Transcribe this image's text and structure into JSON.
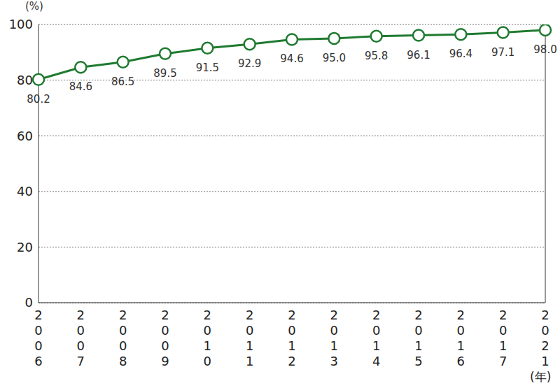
{
  "chart_data": {
    "type": "line",
    "y_label": "(%)",
    "x_label": "(年)",
    "categories": [
      "2006",
      "2007",
      "2008",
      "2009",
      "2010",
      "2011",
      "2012",
      "2013",
      "2014",
      "2015",
      "2016",
      "2017",
      "2021"
    ],
    "values": [
      80.2,
      84.6,
      86.5,
      89.5,
      91.5,
      92.9,
      94.6,
      95.0,
      95.8,
      96.1,
      96.4,
      97.1,
      98.0
    ],
    "value_labels": [
      "80.2",
      "84.6",
      "86.5",
      "89.5",
      "91.5",
      "92.9",
      "94.6",
      "95.0",
      "95.8",
      "96.1",
      "96.4",
      "97.1",
      "98.0"
    ],
    "color": "#1f7a30",
    "marker": "circle",
    "ylim": [
      0,
      100
    ],
    "yticks": [
      0,
      20,
      40,
      60,
      80,
      100
    ],
    "grid": true,
    "data_labels": true
  }
}
